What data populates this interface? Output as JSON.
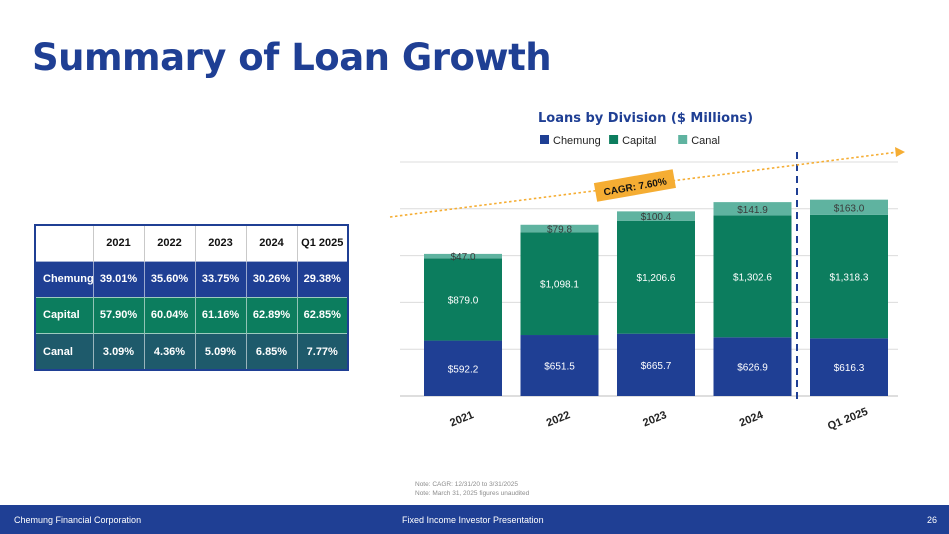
{
  "page": {
    "title": "Summary of Loan Growth",
    "footer_left": "Chemung Financial Corporation",
    "footer_center": "Fixed Income Investor Presentation",
    "page_number": "26",
    "notes": [
      "Note: CAGR: 12/31/20 to 3/31/2025",
      "Note: March 31, 2025 figures unaudited"
    ]
  },
  "colors": {
    "chemung": "#1f3f94",
    "capital": "#0c7d5e",
    "canal": "#5fb3a0",
    "title": "#1f3f94",
    "cagr": "#f5ad33"
  },
  "table": {
    "headers": [
      "",
      "2021",
      "2022",
      "2023",
      "2024",
      "Q1 2025"
    ],
    "rows": [
      {
        "label": "Chemung",
        "values": [
          "39.01%",
          "35.60%",
          "33.75%",
          "30.26%",
          "29.38%"
        ]
      },
      {
        "label": "Capital",
        "values": [
          "57.90%",
          "60.04%",
          "61.16%",
          "62.89%",
          "62.85%"
        ]
      },
      {
        "label": "Canal",
        "values": [
          "3.09%",
          "4.36%",
          "5.09%",
          "6.85%",
          "7.77%"
        ]
      }
    ]
  },
  "chart_data": {
    "type": "bar",
    "stacked": true,
    "title": "Loans by Division ($ Millions)",
    "categories": [
      "2021",
      "2022",
      "2023",
      "2024",
      "Q1 2025"
    ],
    "series": [
      {
        "name": "Chemung",
        "values": [
          592.2,
          651.5,
          665.7,
          626.9,
          616.3
        ],
        "labels": [
          "$592.2",
          "$651.5",
          "$665.7",
          "$626.9",
          "$616.3"
        ]
      },
      {
        "name": "Capital",
        "values": [
          879.0,
          1098.1,
          1206.6,
          1302.6,
          1318.3
        ],
        "labels": [
          "$879.0",
          "$1,098.1",
          "$1,206.6",
          "$1,302.6",
          "$1,318.3"
        ]
      },
      {
        "name": "Canal",
        "values": [
          47.0,
          79.8,
          100.4,
          141.9,
          163.0
        ],
        "labels": [
          "$47.0",
          "$79.8",
          "$100.4",
          "$141.9",
          "$163.0"
        ]
      }
    ],
    "ylim": [
      0,
      2500
    ],
    "grid": true,
    "legend": "top",
    "annotation": "CAGR: 7.60%"
  }
}
